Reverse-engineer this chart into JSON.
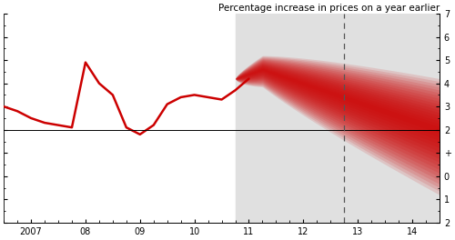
{
  "title": "Percentage increase in prices on a year earlier",
  "xlim": [
    2006.5,
    2014.5
  ],
  "ylim": [
    -2,
    7
  ],
  "ytick_positions": [
    -2,
    -1,
    0,
    1,
    2,
    3,
    4,
    5,
    6,
    7
  ],
  "ytick_labels_right": [
    "2",
    "1",
    "0",
    "+",
    "2",
    "3",
    "4",
    "5",
    "6",
    "7"
  ],
  "xtick_positions": [
    2007,
    2008,
    2009,
    2010,
    2011,
    2012,
    2013,
    2014
  ],
  "xtick_labels": [
    "2007",
    "08",
    "09",
    "10",
    "11",
    "12",
    "13",
    "14"
  ],
  "target_line_y": 2.0,
  "forecast_start_x": 2010.75,
  "dashed_line_x": 2012.75,
  "forecast_end_x": 2014.5,
  "background_color": "#ffffff",
  "forecast_bg_color": "#e0e0e0",
  "fan_color": "#cc0000",
  "line_color": "#cc0000",
  "line_width": 1.8,
  "history_x": [
    2006.5,
    2006.75,
    2007.0,
    2007.25,
    2007.5,
    2007.75,
    2008.0,
    2008.25,
    2008.5,
    2008.75,
    2009.0,
    2009.25,
    2009.5,
    2009.75,
    2010.0,
    2010.25,
    2010.5,
    2010.75,
    2011.0
  ],
  "history_y": [
    3.0,
    2.8,
    2.5,
    2.3,
    2.2,
    2.1,
    4.9,
    4.0,
    3.5,
    2.1,
    1.8,
    2.2,
    3.1,
    3.4,
    3.5,
    3.4,
    3.3,
    3.7,
    4.2
  ],
  "n_bands": 18,
  "alpha_per_band": 0.12
}
